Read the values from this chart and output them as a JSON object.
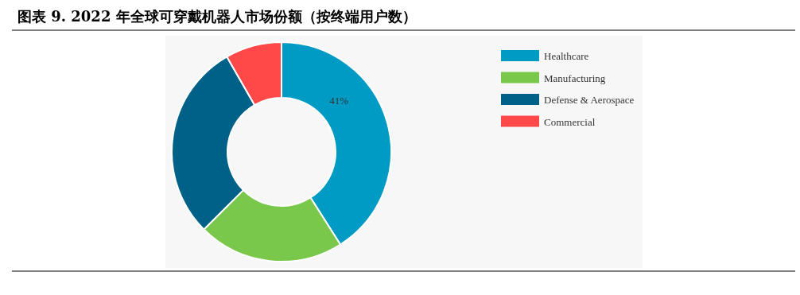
{
  "chart_data": {
    "type": "donut",
    "title": "图表 9. 2022 年全球可穿戴机器人市场份额（按终端用户数）",
    "categories": [
      "Healthcare",
      "Manufacturing",
      "Defense & Aerospace",
      "Commercial"
    ],
    "values": [
      41,
      21.5,
      29.2,
      8.3
    ],
    "colors": [
      "#009bc4",
      "#79c74b",
      "#006188",
      "#ff4949"
    ],
    "value_labels": [
      "41%",
      null,
      null,
      null
    ],
    "legend": "top right"
  }
}
